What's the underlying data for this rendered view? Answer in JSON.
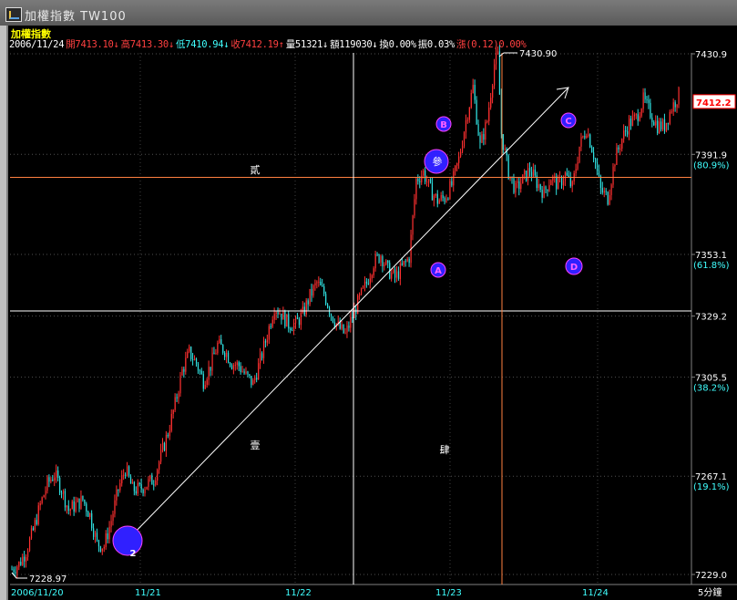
{
  "window": {
    "title": "加權指數 TW100",
    "colors": {
      "bg": "#000000",
      "up": "#ff3030",
      "down": "#30e0e0",
      "guide": "#ffffff",
      "fib": "#ff8040",
      "circle": "#3020ff",
      "axis_text": "#ffffff",
      "fib_text": "#40ffff"
    }
  },
  "header": {
    "name": "加權指數",
    "info": [
      {
        "text": "2006/11/24",
        "color": "white"
      },
      {
        "text": "開7413.10↓",
        "color": "red"
      },
      {
        "text": "高7413.30↓",
        "color": "red"
      },
      {
        "text": "低7410.94↓",
        "color": "cyan"
      },
      {
        "text": "收7412.19↑",
        "color": "red"
      },
      {
        "text": "量51321↓",
        "color": "white"
      },
      {
        "text": "額119030↓",
        "color": "white"
      },
      {
        "text": "換0.00%",
        "color": "white"
      },
      {
        "text": "振0.03%",
        "color": "white"
      },
      {
        "text": "漲(0.12)0.00%",
        "color": "red"
      }
    ]
  },
  "annotations": {
    "high_label": "7430.90",
    "low_label": "7228.97",
    "waves": {
      "w1": "壹",
      "w2": "貳",
      "w3": "參",
      "w4": "肆"
    },
    "points": {
      "p2": "2",
      "pA": "A",
      "pB": "B",
      "pC": "C",
      "pD": "D"
    }
  },
  "axis": {
    "right_ticks": [
      {
        "label": "7430.9",
        "value": 7430.9
      },
      {
        "label": "7391.9",
        "value": 7391.9
      },
      {
        "label": "7353.1",
        "value": 7353.1
      },
      {
        "label": "7329.2",
        "value": 7329.2
      },
      {
        "label": "7305.5",
        "value": 7305.5
      },
      {
        "label": "7267.1",
        "value": 7267.1
      },
      {
        "label": "7229.0",
        "value": 7229.0
      }
    ],
    "fib_labels": [
      {
        "label": "(80.9%)",
        "value": 7391.9
      },
      {
        "label": "(61.8%)",
        "value": 7353.1
      },
      {
        "label": "(38.2%)",
        "value": 7305.5
      },
      {
        "label": "(19.1%)",
        "value": 7267.1
      }
    ],
    "last_price": "7412.2",
    "x_labels": [
      "2006/11/20",
      "11/21",
      "11/22",
      "11/23",
      "11/24"
    ],
    "period": "5分鐘"
  },
  "chart_data": {
    "type": "candlestick",
    "title": "加權指數 TW100",
    "interval": "5分鐘",
    "ylim": [
      7222,
      7436
    ],
    "days": [
      "2006/11/20",
      "11/21",
      "11/22",
      "11/23",
      "11/24"
    ],
    "close_path": [
      {
        "x": 0,
        "y": 7231
      },
      {
        "x": 4,
        "y": 7233
      },
      {
        "x": 8,
        "y": 7238
      },
      {
        "x": 12,
        "y": 7246
      },
      {
        "x": 16,
        "y": 7256
      },
      {
        "x": 20,
        "y": 7264
      },
      {
        "x": 24,
        "y": 7268
      },
      {
        "x": 28,
        "y": 7262
      },
      {
        "x": 32,
        "y": 7254
      },
      {
        "x": 36,
        "y": 7256
      },
      {
        "x": 40,
        "y": 7258
      },
      {
        "x": 44,
        "y": 7252
      },
      {
        "x": 48,
        "y": 7241
      },
      {
        "x": 52,
        "y": 7240
      },
      {
        "x": 56,
        "y": 7250
      },
      {
        "x": 60,
        "y": 7262
      },
      {
        "x": 64,
        "y": 7270
      },
      {
        "x": 68,
        "y": 7262
      },
      {
        "x": 72,
        "y": 7262
      },
      {
        "x": 76,
        "y": 7264
      },
      {
        "x": 80,
        "y": 7266
      },
      {
        "x": 84,
        "y": 7275
      },
      {
        "x": 88,
        "y": 7284
      },
      {
        "x": 92,
        "y": 7295
      },
      {
        "x": 96,
        "y": 7308
      },
      {
        "x": 100,
        "y": 7315
      },
      {
        "x": 104,
        "y": 7311
      },
      {
        "x": 108,
        "y": 7304
      },
      {
        "x": 112,
        "y": 7310
      },
      {
        "x": 116,
        "y": 7318
      },
      {
        "x": 120,
        "y": 7316
      },
      {
        "x": 124,
        "y": 7311
      },
      {
        "x": 128,
        "y": 7310
      },
      {
        "x": 132,
        "y": 7306
      },
      {
        "x": 136,
        "y": 7303
      },
      {
        "x": 140,
        "y": 7312
      },
      {
        "x": 144,
        "y": 7322
      },
      {
        "x": 148,
        "y": 7333
      },
      {
        "x": 152,
        "y": 7330
      },
      {
        "x": 156,
        "y": 7326
      },
      {
        "x": 160,
        "y": 7326
      },
      {
        "x": 164,
        "y": 7330
      },
      {
        "x": 168,
        "y": 7337
      },
      {
        "x": 172,
        "y": 7342
      },
      {
        "x": 176,
        "y": 7338
      },
      {
        "x": 180,
        "y": 7330
      },
      {
        "x": 184,
        "y": 7325
      },
      {
        "x": 188,
        "y": 7322
      },
      {
        "x": 192,
        "y": 7329
      },
      {
        "x": 196,
        "y": 7336
      },
      {
        "x": 200,
        "y": 7342
      },
      {
        "x": 204,
        "y": 7350
      },
      {
        "x": 208,
        "y": 7353
      },
      {
        "x": 212,
        "y": 7347
      },
      {
        "x": 216,
        "y": 7344
      },
      {
        "x": 220,
        "y": 7348
      },
      {
        "x": 224,
        "y": 7352
      },
      {
        "x": 228,
        "y": 7382
      },
      {
        "x": 232,
        "y": 7385
      },
      {
        "x": 236,
        "y": 7378
      },
      {
        "x": 240,
        "y": 7374
      },
      {
        "x": 244,
        "y": 7375
      },
      {
        "x": 248,
        "y": 7380
      },
      {
        "x": 252,
        "y": 7390
      },
      {
        "x": 256,
        "y": 7405
      },
      {
        "x": 260,
        "y": 7418
      },
      {
        "x": 264,
        "y": 7395
      },
      {
        "x": 268,
        "y": 7405
      },
      {
        "x": 272,
        "y": 7427
      },
      {
        "x": 274,
        "y": 7430
      },
      {
        "x": 276,
        "y": 7400
      },
      {
        "x": 280,
        "y": 7385
      },
      {
        "x": 284,
        "y": 7378
      },
      {
        "x": 288,
        "y": 7382
      },
      {
        "x": 292,
        "y": 7386
      },
      {
        "x": 296,
        "y": 7381
      },
      {
        "x": 300,
        "y": 7377
      },
      {
        "x": 304,
        "y": 7383
      },
      {
        "x": 308,
        "y": 7380
      },
      {
        "x": 312,
        "y": 7384
      },
      {
        "x": 316,
        "y": 7379
      },
      {
        "x": 320,
        "y": 7395
      },
      {
        "x": 324,
        "y": 7402
      },
      {
        "x": 328,
        "y": 7392
      },
      {
        "x": 332,
        "y": 7378
      },
      {
        "x": 336,
        "y": 7375
      },
      {
        "x": 340,
        "y": 7390
      },
      {
        "x": 344,
        "y": 7398
      },
      {
        "x": 348,
        "y": 7404
      },
      {
        "x": 352,
        "y": 7406
      },
      {
        "x": 356,
        "y": 7413
      },
      {
        "x": 360,
        "y": 7408
      },
      {
        "x": 364,
        "y": 7403
      },
      {
        "x": 368,
        "y": 7403
      },
      {
        "x": 372,
        "y": 7410
      },
      {
        "x": 376,
        "y": 7415
      }
    ],
    "points_count": 377,
    "fib_levels": [
      {
        "label": "(80.9%)",
        "value": 7391.9
      },
      {
        "label": "(61.8%)",
        "value": 7353.1
      },
      {
        "label": "(38.2%)",
        "value": 7305.5
      },
      {
        "label": "(19.1%)",
        "value": 7267.1
      }
    ],
    "high": 7430.9,
    "low": 7228.97
  }
}
